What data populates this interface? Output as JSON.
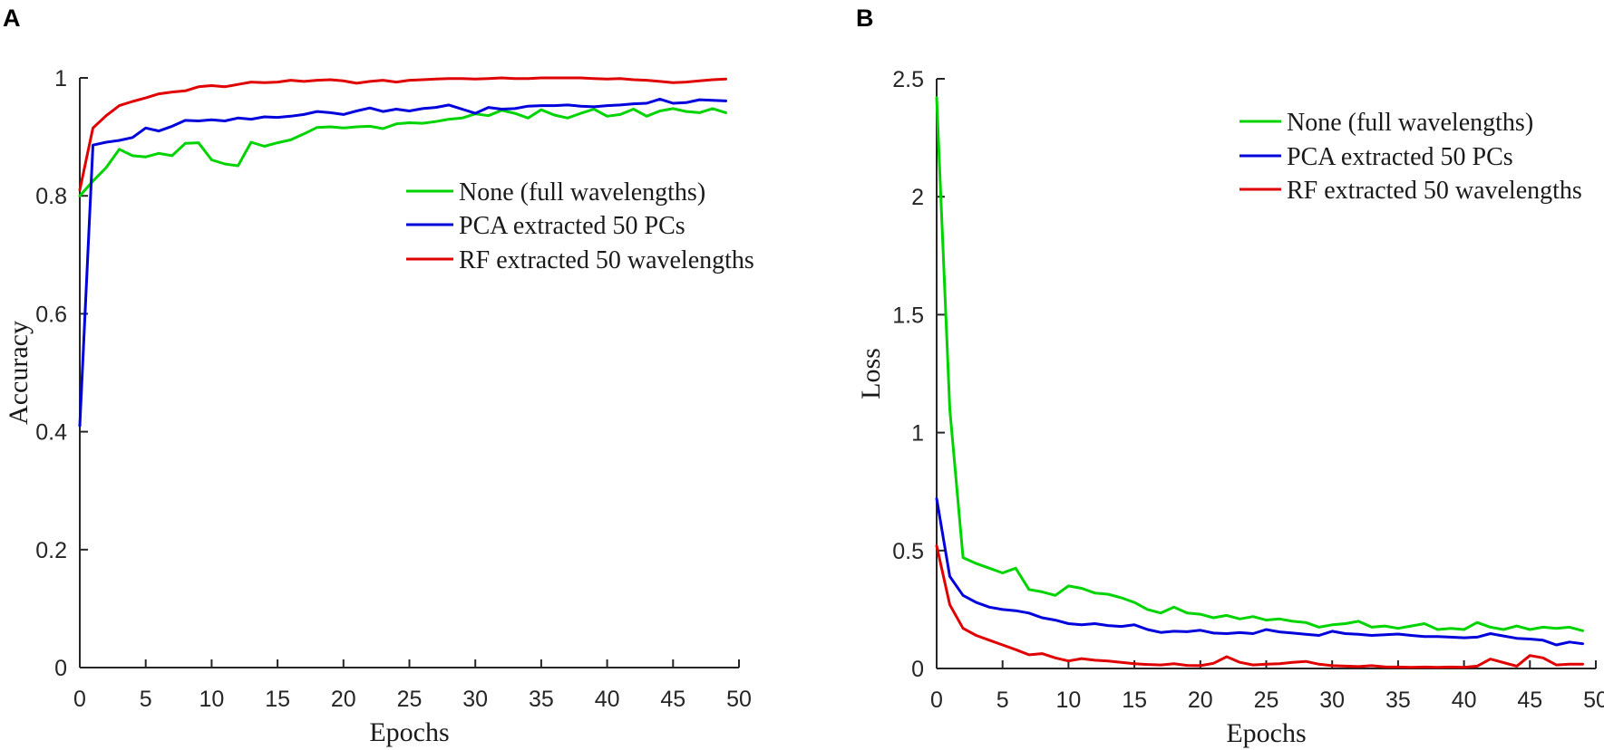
{
  "page": {
    "background": "#ffffff",
    "axis_color": "#262626"
  },
  "chart_data": [
    {
      "type": "line",
      "panel_label": "A",
      "title": "",
      "xlabel": "Epochs",
      "ylabel": "Accuracy",
      "xlim": [
        0,
        50
      ],
      "ylim": [
        0,
        1
      ],
      "xticks": [
        0,
        5,
        10,
        15,
        20,
        25,
        30,
        35,
        40,
        45,
        50
      ],
      "yticks": [
        0,
        0.2,
        0.4,
        0.6,
        0.8,
        1
      ],
      "ytick_labels": [
        "0",
        "0.2",
        "0.4",
        "0.6",
        "0.8",
        "1"
      ],
      "grid": false,
      "legend_position": "right-center",
      "x": [
        0,
        1,
        2,
        3,
        4,
        5,
        6,
        7,
        8,
        9,
        10,
        11,
        12,
        13,
        14,
        15,
        16,
        17,
        18,
        19,
        20,
        21,
        22,
        23,
        24,
        25,
        26,
        27,
        28,
        29,
        30,
        31,
        32,
        33,
        34,
        35,
        36,
        37,
        38,
        39,
        40,
        41,
        42,
        43,
        44,
        45,
        46,
        47,
        48,
        49
      ],
      "series": [
        {
          "name": "None (full wavelengths)",
          "color": "#00d400",
          "values": [
            0.8,
            0.825,
            0.848,
            0.879,
            0.868,
            0.866,
            0.872,
            0.868,
            0.889,
            0.89,
            0.861,
            0.854,
            0.851,
            0.891,
            0.884,
            0.89,
            0.895,
            0.905,
            0.916,
            0.917,
            0.915,
            0.917,
            0.918,
            0.914,
            0.922,
            0.924,
            0.923,
            0.926,
            0.93,
            0.932,
            0.939,
            0.936,
            0.945,
            0.94,
            0.932,
            0.946,
            0.937,
            0.932,
            0.94,
            0.947,
            0.935,
            0.938,
            0.947,
            0.935,
            0.944,
            0.948,
            0.943,
            0.941,
            0.948,
            0.941
          ]
        },
        {
          "name": "PCA extracted 50 PCs",
          "color": "#0000dc",
          "values": [
            0.41,
            0.886,
            0.891,
            0.894,
            0.899,
            0.915,
            0.91,
            0.918,
            0.928,
            0.927,
            0.929,
            0.927,
            0.932,
            0.93,
            0.934,
            0.933,
            0.935,
            0.938,
            0.943,
            0.941,
            0.938,
            0.944,
            0.949,
            0.943,
            0.947,
            0.944,
            0.948,
            0.95,
            0.954,
            0.947,
            0.94,
            0.95,
            0.947,
            0.948,
            0.952,
            0.953,
            0.953,
            0.954,
            0.952,
            0.951,
            0.953,
            0.954,
            0.956,
            0.957,
            0.964,
            0.957,
            0.958,
            0.963,
            0.962,
            0.961
          ]
        },
        {
          "name": "RF extracted 50 wavelengths",
          "color": "#e00000",
          "values": [
            0.81,
            0.915,
            0.936,
            0.953,
            0.96,
            0.966,
            0.973,
            0.976,
            0.978,
            0.985,
            0.987,
            0.985,
            0.989,
            0.993,
            0.992,
            0.993,
            0.996,
            0.994,
            0.996,
            0.997,
            0.995,
            0.991,
            0.994,
            0.996,
            0.993,
            0.996,
            0.997,
            0.998,
            0.999,
            0.999,
            0.998,
            0.999,
            1.0,
            0.999,
            0.999,
            1.0,
            1.0,
            1.0,
            1.0,
            0.999,
            0.998,
            0.999,
            0.997,
            0.996,
            0.994,
            0.992,
            0.993,
            0.995,
            0.997,
            0.998
          ]
        }
      ]
    },
    {
      "type": "line",
      "panel_label": "B",
      "title": "",
      "xlabel": "Epochs",
      "ylabel": "Loss",
      "xlim": [
        0,
        50
      ],
      "ylim": [
        0,
        2.5
      ],
      "xticks": [
        0,
        5,
        10,
        15,
        20,
        25,
        30,
        35,
        40,
        45,
        50
      ],
      "yticks": [
        0,
        0.5,
        1,
        1.5,
        2,
        2.5
      ],
      "ytick_labels": [
        "0",
        "0.5",
        "1",
        "1.5",
        "2",
        "2.5"
      ],
      "grid": false,
      "legend_position": "right-top",
      "x": [
        0,
        1,
        2,
        3,
        4,
        5,
        6,
        7,
        8,
        9,
        10,
        11,
        12,
        13,
        14,
        15,
        16,
        17,
        18,
        19,
        20,
        21,
        22,
        23,
        24,
        25,
        26,
        27,
        28,
        29,
        30,
        31,
        32,
        33,
        34,
        35,
        36,
        37,
        38,
        39,
        40,
        41,
        42,
        43,
        44,
        45,
        46,
        47,
        48,
        49
      ],
      "series": [
        {
          "name": "None (full wavelengths)",
          "color": "#00d400",
          "values": [
            2.42,
            1.1,
            0.47,
            0.445,
            0.425,
            0.405,
            0.425,
            0.335,
            0.325,
            0.31,
            0.35,
            0.34,
            0.32,
            0.315,
            0.3,
            0.28,
            0.25,
            0.235,
            0.26,
            0.235,
            0.23,
            0.215,
            0.225,
            0.21,
            0.22,
            0.205,
            0.21,
            0.2,
            0.195,
            0.175,
            0.185,
            0.19,
            0.2,
            0.175,
            0.18,
            0.17,
            0.18,
            0.19,
            0.165,
            0.17,
            0.165,
            0.195,
            0.175,
            0.165,
            0.18,
            0.165,
            0.175,
            0.17,
            0.175,
            0.16
          ]
        },
        {
          "name": "PCA extracted 50 PCs",
          "color": "#0000dc",
          "values": [
            0.72,
            0.39,
            0.31,
            0.28,
            0.26,
            0.25,
            0.245,
            0.235,
            0.215,
            0.205,
            0.19,
            0.185,
            0.19,
            0.182,
            0.178,
            0.185,
            0.165,
            0.153,
            0.158,
            0.156,
            0.162,
            0.15,
            0.148,
            0.152,
            0.148,
            0.165,
            0.155,
            0.15,
            0.145,
            0.14,
            0.158,
            0.148,
            0.145,
            0.14,
            0.143,
            0.146,
            0.14,
            0.135,
            0.135,
            0.133,
            0.13,
            0.133,
            0.148,
            0.138,
            0.128,
            0.125,
            0.12,
            0.1,
            0.112,
            0.105
          ]
        },
        {
          "name": "RF extracted 50 wavelengths",
          "color": "#e00000",
          "values": [
            0.52,
            0.27,
            0.17,
            0.14,
            0.12,
            0.1,
            0.08,
            0.058,
            0.063,
            0.045,
            0.032,
            0.042,
            0.035,
            0.032,
            0.026,
            0.02,
            0.017,
            0.015,
            0.02,
            0.013,
            0.012,
            0.022,
            0.05,
            0.026,
            0.015,
            0.018,
            0.02,
            0.026,
            0.03,
            0.018,
            0.012,
            0.01,
            0.008,
            0.012,
            0.007,
            0.006,
            0.005,
            0.006,
            0.005,
            0.006,
            0.005,
            0.01,
            0.04,
            0.025,
            0.01,
            0.055,
            0.045,
            0.015,
            0.018,
            0.018
          ]
        }
      ]
    }
  ]
}
